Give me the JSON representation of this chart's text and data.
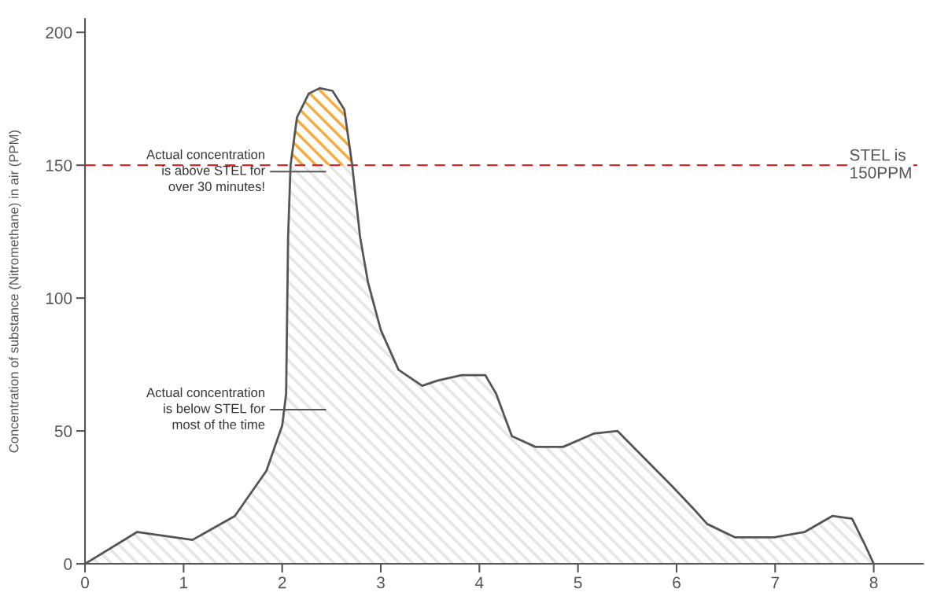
{
  "chart_data": {
    "type": "area",
    "ylabel": "Concentration of substance (Nitromethane) in air (PPM)",
    "xlim": [
      0,
      8.5
    ],
    "xticks": [
      0,
      1,
      2,
      3,
      4,
      5,
      6,
      7,
      8
    ],
    "ylim": [
      0,
      205
    ],
    "yticks": [
      0,
      50,
      100,
      150,
      200
    ],
    "grid": false,
    "legend": false,
    "series": [
      {
        "color": "#e6e6e6",
        "x": [
          0,
          0.53,
          1.09,
          1.52,
          1.84,
          2.0,
          2.04,
          2.06,
          2.085,
          2.15,
          2.27,
          2.38,
          2.51,
          2.63,
          2.71,
          2.79,
          2.87,
          3.0,
          3.18,
          3.42,
          3.58,
          3.82,
          4.06,
          4.17,
          4.33,
          4.57,
          4.85,
          5.16,
          5.4,
          5.64,
          5.96,
          6.19,
          6.31,
          6.59,
          6.99,
          7.3,
          7.58,
          7.78,
          7.9,
          8
        ],
        "values": [
          0,
          12,
          9,
          18,
          35,
          52,
          64,
          123,
          150,
          168,
          177,
          179,
          178,
          171,
          150,
          123,
          106,
          88,
          73,
          67,
          69,
          71,
          71,
          64,
          48,
          44,
          44,
          49,
          50,
          41,
          29,
          20,
          15,
          10,
          10,
          12,
          18,
          17,
          8,
          0
        ]
      },
      {
        "color": "#f9ab3c",
        "x": [
          2.085,
          2.15,
          2.27,
          2.38,
          2.51,
          2.63,
          2.71
        ],
        "values": [
          150,
          168,
          177,
          179,
          178,
          171,
          150
        ]
      }
    ],
    "ref_lines": [
      {
        "axis": "y",
        "value": 150,
        "label": "STEL is\n150PPM",
        "color": "#d62728",
        "line_style": "dashed"
      }
    ],
    "annotations": [
      "Actual concentration\nis above STEL for\nover 30 minutes!",
      "Actual concentration\nis below STEL for\nmost of the time"
    ]
  }
}
